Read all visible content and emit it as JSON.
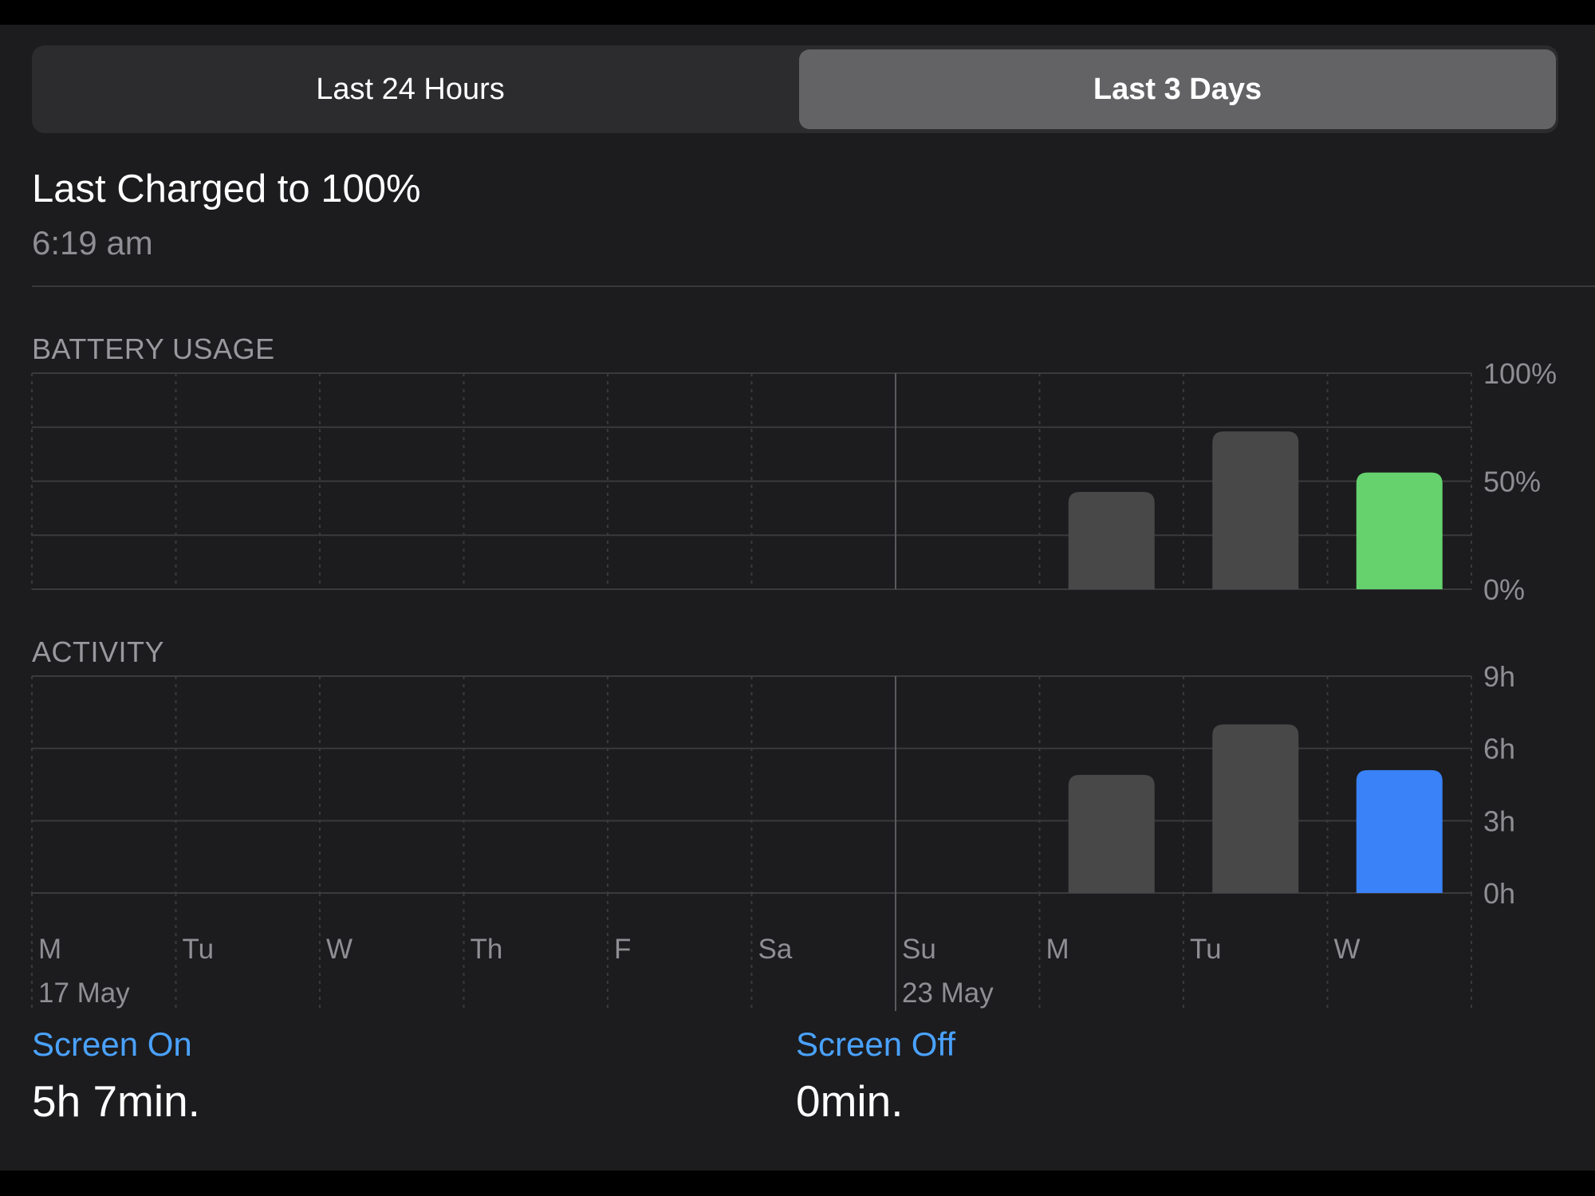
{
  "tabs": [
    {
      "label": "Last 24 Hours",
      "selected": false
    },
    {
      "label": "Last 3 Days",
      "selected": true
    }
  ],
  "last_charged": {
    "title": "Last Charged to 100%",
    "time": "6:19 am"
  },
  "battery_section_label": "BATTERY USAGE",
  "activity_section_label": "ACTIVITY",
  "chart_data": [
    {
      "type": "bar",
      "title": "BATTERY USAGE",
      "categories": [
        "M",
        "Tu",
        "W",
        "Th",
        "F",
        "Sa",
        "Su",
        "M",
        "Tu",
        "W"
      ],
      "date_labels": [
        "17 May",
        "",
        "",
        "",
        "",
        "",
        "23 May",
        "",
        "",
        ""
      ],
      "values": [
        0,
        0,
        0,
        0,
        0,
        0,
        0,
        45,
        73,
        54
      ],
      "ylim": [
        0,
        100
      ],
      "yticks": [
        "100%",
        "50%",
        "0%"
      ],
      "highlight_index": 9,
      "colors": {
        "bar": "#484848",
        "highlight": "#65d26e"
      }
    },
    {
      "type": "bar",
      "title": "ACTIVITY",
      "categories": [
        "M",
        "Tu",
        "W",
        "Th",
        "F",
        "Sa",
        "Su",
        "M",
        "Tu",
        "W"
      ],
      "date_labels": [
        "17 May",
        "",
        "",
        "",
        "",
        "",
        "23 May",
        "",
        "",
        ""
      ],
      "values": [
        0,
        0,
        0,
        0,
        0,
        0,
        0,
        4.9,
        7.0,
        5.1
      ],
      "ylim": [
        0,
        9
      ],
      "yticks": [
        "9h",
        "6h",
        "3h",
        "0h"
      ],
      "highlight_index": 9,
      "colors": {
        "bar": "#484848",
        "highlight": "#3a82f7"
      }
    }
  ],
  "screen_on": {
    "label": "Screen On",
    "value": "5h 7min."
  },
  "screen_off": {
    "label": "Screen Off",
    "value": "0min."
  }
}
